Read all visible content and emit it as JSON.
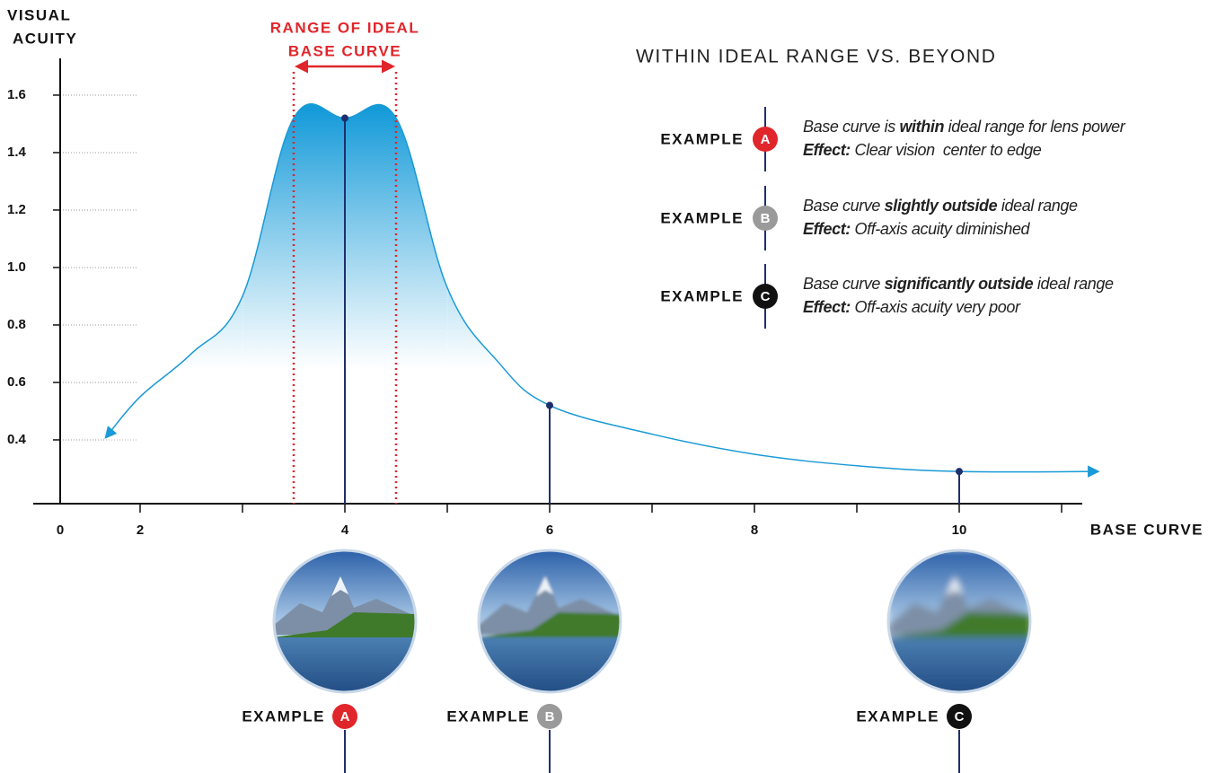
{
  "chart_data": {
    "type": "line",
    "y_label": [
      "VISUAL",
      "ACUITY"
    ],
    "x_label": "BASE CURVE",
    "xticks": [
      0,
      2,
      4,
      6,
      8,
      10
    ],
    "minor_xticks": [
      3,
      5,
      7,
      9,
      11
    ],
    "yticks": [
      0.4,
      0.6,
      0.8,
      {
        "value": 1,
        "label": "1.0"
      },
      1.2,
      1.4,
      1.6
    ],
    "ylim": [
      0.178,
      1.728
    ],
    "xlim": [
      0,
      11.8
    ],
    "series": [
      {
        "color": "#1a9ad6",
        "x": [
          1.15,
          2,
          2.5,
          3,
          3.5,
          4,
          4.5,
          5,
          5.5,
          6,
          7,
          8,
          9,
          10,
          11.35
        ],
        "values": [
          0.41,
          0.55,
          0.7,
          0.9,
          1.52,
          1.52,
          1.52,
          0.93,
          0.67,
          0.52,
          0.42,
          0.35,
          0.31,
          0.29,
          0.29
        ]
      }
    ],
    "range": {
      "label": [
        "RANGE OF IDEAL",
        "BASE CURVE"
      ],
      "from": 3.5,
      "to": 4.5,
      "color": "#e0262b"
    },
    "legend_title": "WITHIN IDEAL RANGE VS. BEYOND",
    "examples": [
      {
        "label": "EXAMPLE",
        "badge": "A",
        "badge_color": "#e0262b",
        "x": 4,
        "value": 1.52,
        "blur": 0,
        "lines": [
          [
            {
              "text": "Base curve is "
            },
            {
              "text": "within",
              "bold": true
            },
            {
              "text": " ideal range for lens power"
            }
          ],
          [
            {
              "text": "Effect:",
              "bold": true
            },
            {
              "text": " Clear vision  center to edge"
            }
          ]
        ]
      },
      {
        "label": "EXAMPLE",
        "badge": "B",
        "badge_color": "#9a9a9a",
        "x": 6,
        "value": 0.52,
        "blur": 1.5,
        "lines": [
          [
            {
              "text": "Base curve "
            },
            {
              "text": "slightly outside",
              "bold": true
            },
            {
              "text": " ideal range"
            }
          ],
          [
            {
              "text": "Effect:",
              "bold": true
            },
            {
              "text": " Off-axis acuity diminished"
            }
          ]
        ]
      },
      {
        "label": "EXAMPLE",
        "badge": "C",
        "badge_color": "#111111",
        "x": 10,
        "value": 0.29,
        "blur": 4,
        "lines": [
          [
            {
              "text": "Base curve "
            },
            {
              "text": "significantly outside",
              "bold": true
            },
            {
              "text": " ideal range"
            }
          ],
          [
            {
              "text": "Effect:",
              "bold": true
            },
            {
              "text": " Off-axis acuity very poor"
            }
          ]
        ]
      }
    ],
    "point_color": "#1f2f6b"
  }
}
